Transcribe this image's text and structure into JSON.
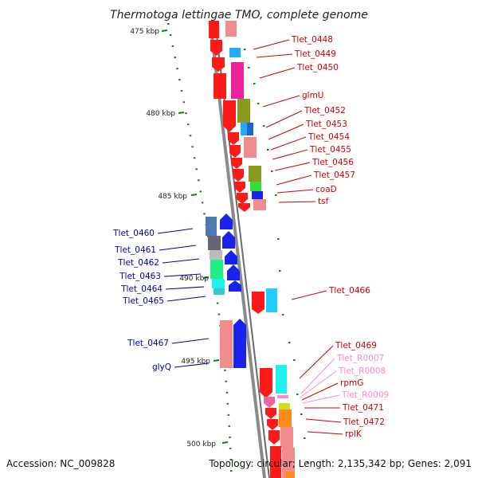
{
  "title": "Thermotoga lettingae TMO, complete genome",
  "footer": {
    "accession": "Accession: NC_009828",
    "summary": "Topology: circular; Length: 2,135,342 bp; Genes: 2,091"
  },
  "scale": {
    "ticks": [
      "475 kbp",
      "480 kbp",
      "485 kbp",
      "490 kbp",
      "495 kbp",
      "500 kbp"
    ]
  },
  "colors": {
    "forward_label": "#cc0000",
    "reverse_label": "#0000aa",
    "rna_label": "#ff88cc",
    "axis": "#888888",
    "tick": "#1a7a1a"
  },
  "labels": {
    "right": [
      {
        "text": "Tlet_0448",
        "kind": "gene"
      },
      {
        "text": "Tlet_0449",
        "kind": "gene"
      },
      {
        "text": "Tlet_0450",
        "kind": "gene"
      },
      {
        "text": "glmU",
        "kind": "gene"
      },
      {
        "text": "Tlet_0452",
        "kind": "gene"
      },
      {
        "text": "Tlet_0453",
        "kind": "gene"
      },
      {
        "text": "Tlet_0454",
        "kind": "gene"
      },
      {
        "text": "Tlet_0455",
        "kind": "gene"
      },
      {
        "text": "Tlet_0456",
        "kind": "gene"
      },
      {
        "text": "Tlet_0457",
        "kind": "gene"
      },
      {
        "text": "coaD",
        "kind": "gene"
      },
      {
        "text": "tsf",
        "kind": "gene"
      },
      {
        "text": "Tlet_0466",
        "kind": "gene"
      },
      {
        "text": "Tlet_0469",
        "kind": "gene"
      },
      {
        "text": "Tlet_R0007",
        "kind": "rna"
      },
      {
        "text": "Tlet_R0008",
        "kind": "rna"
      },
      {
        "text": "rpmG",
        "kind": "gene"
      },
      {
        "text": "Tlet_R0009",
        "kind": "rna"
      },
      {
        "text": "Tlet_0471",
        "kind": "gene"
      },
      {
        "text": "Tlet_0472",
        "kind": "gene"
      },
      {
        "text": "rplK",
        "kind": "gene"
      }
    ],
    "left": [
      {
        "text": "Tlet_0460"
      },
      {
        "text": "Tlet_0461"
      },
      {
        "text": "Tlet_0462"
      },
      {
        "text": "Tlet_0463"
      },
      {
        "text": "Tlet_0464"
      },
      {
        "text": "Tlet_0465"
      },
      {
        "text": "Tlet_0467"
      },
      {
        "text": "glyQ"
      }
    ]
  }
}
